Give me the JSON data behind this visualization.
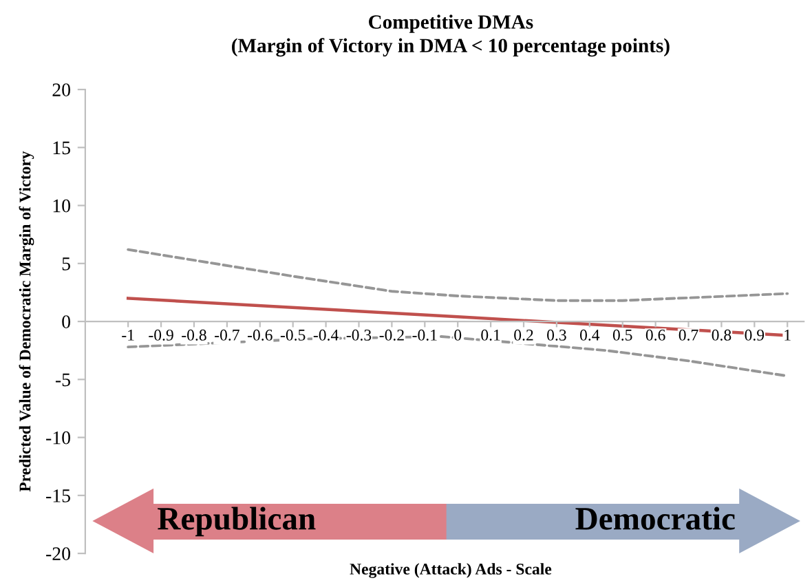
{
  "chart_data": {
    "type": "line",
    "title": "Competitive DMAs",
    "subtitle": "(Margin of Victory in DMA < 10 percentage points)",
    "xlabel": "Negative (Attack) Ads - Scale",
    "ylabel": "Predicted Value of Democratic Margin of Victory",
    "series": [
      {
        "color": "#c0504d",
        "line_style": "solid",
        "x": [
          -1,
          0,
          1
        ],
        "values": [
          2.0,
          0.4,
          -1.2
        ]
      },
      {
        "color": "#969696",
        "line_style": "dashed",
        "x": [
          -1,
          -0.5,
          -0.2,
          0,
          0.3,
          0.5,
          1
        ],
        "values": [
          6.2,
          3.9,
          2.6,
          2.2,
          1.8,
          1.8,
          2.4
        ]
      },
      {
        "color": "#969696",
        "line_style": "dashed",
        "x": [
          -1,
          -0.45,
          -0.05,
          0.45,
          0.7,
          1
        ],
        "values": [
          -2.2,
          -1.5,
          -1.3,
          -2.5,
          -3.4,
          -4.7
        ]
      }
    ],
    "xlim": [
      -1.13,
      1.05
    ],
    "xticks": [
      -1,
      -0.9,
      -0.8,
      -0.7,
      -0.6,
      -0.5,
      -0.4,
      -0.3,
      -0.2,
      -0.1,
      0,
      0.1,
      0.2,
      0.3,
      0.4,
      0.5,
      0.6,
      0.7,
      0.8,
      0.9,
      1
    ],
    "ylim": [
      -20,
      20
    ],
    "yticks": [
      -20,
      -15,
      -10,
      -5,
      0,
      5,
      10,
      15,
      20
    ],
    "grid": false,
    "legend": false,
    "marker": "none",
    "annotations": [
      "Republican",
      "Democratic"
    ]
  }
}
